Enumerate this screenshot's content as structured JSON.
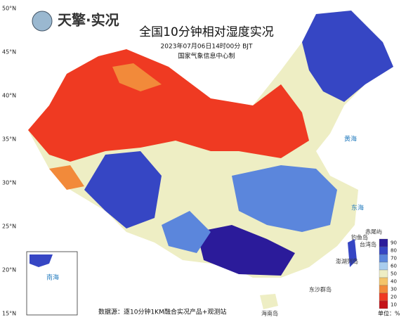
{
  "header": {
    "logo": "天擎·实况",
    "title": "全国10分钟相对湿度实况",
    "time": "2023年07月06日14时00分 BJT",
    "issuer": "国家气象信息中心制"
  },
  "latitude_labels": [
    "50°N",
    "45°N",
    "40°N",
    "35°N",
    "30°N",
    "25°N",
    "20°N",
    "15°N"
  ],
  "legend": {
    "unit": "单位：%",
    "levels": [
      {
        "value": 90,
        "color": "#2b1b9a"
      },
      {
        "value": 80,
        "color": "#3646c4"
      },
      {
        "value": 70,
        "color": "#5b86dc"
      },
      {
        "value": 60,
        "color": "#a9cdee"
      },
      {
        "value": 50,
        "color": "#eeeec4"
      },
      {
        "value": 40,
        "color": "#f4c46a"
      },
      {
        "value": 30,
        "color": "#f28a3a"
      },
      {
        "value": 20,
        "color": "#ef3a22"
      },
      {
        "value": 10,
        "color": "#c4141a"
      }
    ]
  },
  "places": {
    "south_sea": "南海",
    "hainan": "海南岛",
    "taiwan": "台湾岛",
    "yellow_sea": "黄海",
    "east_sea": "东海",
    "dongsha": "东沙群岛",
    "penghu": "澎湖列岛",
    "chiwei": "赤尾屿",
    "diaoyu": "钓鱼岛"
  },
  "footer": {
    "source": "数据源：逐10分钟1KM融合实况产品+观测站"
  }
}
